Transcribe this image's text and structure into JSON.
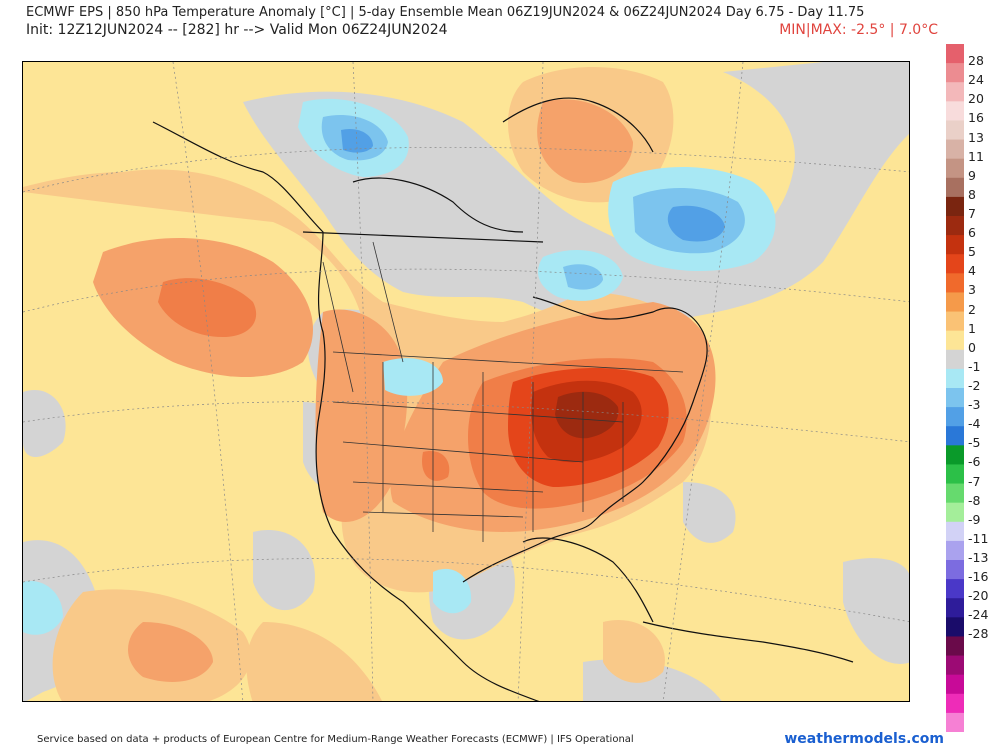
{
  "header": {
    "title": "ECMWF EPS | 850 hPa Temperature Anomaly [°C] | 5-day Ensemble Mean 06Z19JUN2024 & 06Z24JUN2024   Day 6.75 - Day 11.75",
    "subtitle": "Init: 12Z12JUN2024 -- [282] hr --> Valid Mon 06Z24JUN2024",
    "minmax": "MIN|MAX: -2.5° | 7.0°C"
  },
  "footer": {
    "credit": "Service based on data + products of European Centre for Medium-Range Weather Forecasts (ECMWF) | IFS Operational",
    "brand": "weathermodels.com"
  },
  "colorbar": {
    "labels": [
      "28",
      "24",
      "20",
      "16",
      "13",
      "11",
      "9",
      "8",
      "7",
      "6",
      "5",
      "4",
      "3",
      "2",
      "1",
      "0",
      "-1",
      "-2",
      "-3",
      "-4",
      "-5",
      "-6",
      "-7",
      "-8",
      "-9",
      "-11",
      "-13",
      "-16",
      "-20",
      "-24",
      "-28"
    ],
    "colors": [
      "#e5606c",
      "#ec8c91",
      "#f3b8ba",
      "#f8dcdc",
      "#ead0c8",
      "#d8b2a6",
      "#c49484",
      "#a87060",
      "#7a2510",
      "#9c2a10",
      "#c4320f",
      "#e4451a",
      "#f06a2c",
      "#f59a4a",
      "#fac275",
      "#fde596",
      "#d4d4d4",
      "#a8e8f4",
      "#7cc4ee",
      "#52a0e6",
      "#2a78d8",
      "#0a9a2a",
      "#2cc048",
      "#66da6e",
      "#a4ee9a",
      "#d2d2f6",
      "#aaa2ee",
      "#7c6ce0",
      "#4a38c8",
      "#2e1c9a",
      "#1a0c6a",
      "#6a0a4a",
      "#9c0a74",
      "#c80a98",
      "#ee2cb8",
      "#f680d4"
    ],
    "label_positions_cells": [
      1,
      2,
      3,
      4,
      5,
      6,
      7,
      8,
      9,
      10,
      11,
      12,
      13,
      14,
      15,
      16,
      17,
      18,
      19,
      20,
      21,
      22,
      23,
      24,
      25,
      26,
      27,
      28,
      29,
      30,
      31
    ]
  },
  "map": {
    "contours": [
      {
        "level": "1",
        "color": "#fde596"
      },
      {
        "level": "2",
        "color": "#f9c989"
      },
      {
        "level": "3",
        "color": "#f5a26a"
      },
      {
        "level": "4",
        "color": "#f07e48"
      },
      {
        "level": "5",
        "color": "#e4451a"
      },
      {
        "level": "6",
        "color": "#c4320f"
      },
      {
        "level": "7",
        "color": "#9c2a10"
      },
      {
        "level": "0",
        "color": "#d4d4d4"
      },
      {
        "level": "-1",
        "color": "#a8e8f4"
      },
      {
        "level": "-2",
        "color": "#7cc4ee"
      },
      {
        "level": "-3",
        "color": "#52a0e6"
      }
    ]
  }
}
